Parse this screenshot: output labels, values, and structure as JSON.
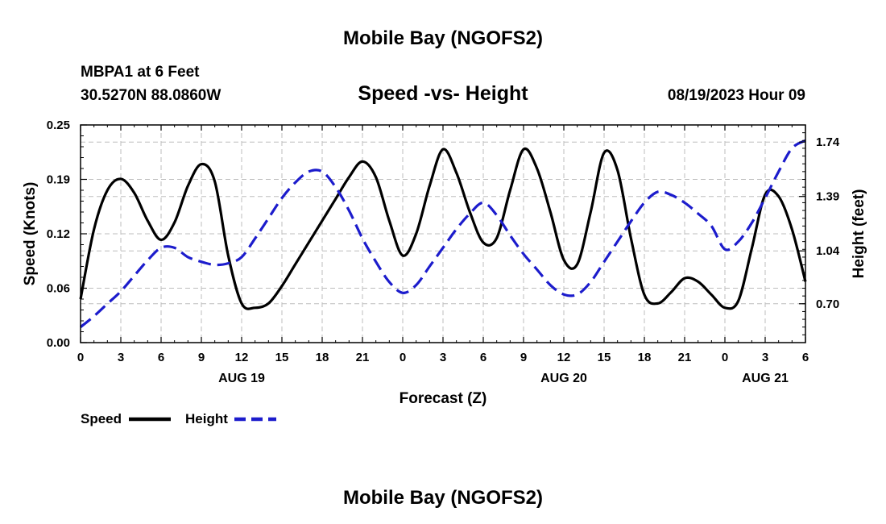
{
  "header": {
    "title": "Mobile Bay (NGOFS2)",
    "station_line1": "MBPA1 at 6 Feet",
    "station_line2": "30.5270N  88.0860W",
    "plot_title": "Speed -vs- Height",
    "datetime": "08/19/2023 Hour 09"
  },
  "footer": {
    "title": "Mobile Bay (NGOFS2)"
  },
  "legend": {
    "placement": "bottom-left",
    "items": [
      {
        "label": "Speed",
        "color": "#000000",
        "style": "solid"
      },
      {
        "label": "Height",
        "color": "#1c1ccc",
        "style": "dashed"
      }
    ]
  },
  "chart_data": {
    "type": "line",
    "xlabel": "Forecast (Z)",
    "ylabel": "Speed (Knots)",
    "y2label": "Height (feet)",
    "x_unit": "hours from 00Z Aug 19",
    "xlim": [
      0,
      54
    ],
    "ylim": [
      0,
      0.25
    ],
    "y2lim": [
      0.45,
      1.85
    ],
    "x_ticks": [
      0,
      3,
      6,
      9,
      12,
      15,
      18,
      21,
      24,
      27,
      30,
      33,
      36,
      39,
      42,
      45,
      48,
      51,
      54
    ],
    "x_tick_labels": [
      "0",
      "3",
      "6",
      "9",
      "12",
      "15",
      "18",
      "21",
      "0",
      "3",
      "6",
      "9",
      "12",
      "15",
      "18",
      "21",
      "0",
      "3",
      "6"
    ],
    "date_labels": [
      {
        "x": 12,
        "label": "AUG 19"
      },
      {
        "x": 36,
        "label": "AUG 20"
      },
      {
        "x": 51,
        "label": "AUG 21"
      }
    ],
    "y_ticks": [
      0,
      0.0625,
      0.125,
      0.1875,
      0.25
    ],
    "y_tick_labels": [
      "0.00",
      "0.06",
      "0.12",
      "0.19",
      "0.25"
    ],
    "y2_ticks": [
      0.7,
      1.04,
      1.39,
      1.74
    ],
    "y2_tick_labels": [
      "0.70",
      "1.04",
      "1.39",
      "1.74"
    ],
    "grid": true,
    "series": [
      {
        "name": "Speed",
        "axis": "left",
        "color": "#000000",
        "dash": false,
        "x": [
          0,
          1,
          2,
          3,
          4,
          5,
          6,
          7,
          8,
          9,
          10,
          11,
          12,
          13,
          14,
          15,
          16,
          17,
          18,
          19,
          20,
          21,
          22,
          23,
          24,
          25,
          26,
          27,
          28,
          29,
          30,
          31,
          32,
          33,
          34,
          35,
          36,
          37,
          38,
          39,
          40,
          41,
          42,
          43,
          44,
          45,
          46,
          47,
          48,
          49,
          50,
          51,
          52,
          53,
          54
        ],
        "values": [
          0.05,
          0.13,
          0.175,
          0.188,
          0.172,
          0.14,
          0.118,
          0.138,
          0.18,
          0.205,
          0.185,
          0.1,
          0.045,
          0.04,
          0.045,
          0.065,
          0.09,
          0.115,
          0.14,
          0.165,
          0.19,
          0.208,
          0.19,
          0.14,
          0.1,
          0.125,
          0.18,
          0.222,
          0.195,
          0.15,
          0.115,
          0.12,
          0.175,
          0.222,
          0.2,
          0.15,
          0.095,
          0.09,
          0.15,
          0.218,
          0.198,
          0.12,
          0.055,
          0.045,
          0.058,
          0.074,
          0.07,
          0.055,
          0.04,
          0.048,
          0.108,
          0.17,
          0.168,
          0.13,
          0.07
        ]
      },
      {
        "name": "Height",
        "axis": "right",
        "color": "#1c1ccc",
        "dash": true,
        "x": [
          0,
          1,
          2,
          3,
          4,
          5,
          6,
          7,
          8,
          9,
          10,
          11,
          12,
          13,
          14,
          15,
          16,
          17,
          18,
          19,
          20,
          21,
          22,
          23,
          24,
          25,
          26,
          27,
          28,
          29,
          30,
          31,
          32,
          33,
          34,
          35,
          36,
          37,
          38,
          39,
          40,
          41,
          42,
          43,
          44,
          45,
          46,
          47,
          48,
          49,
          50,
          51,
          52,
          53,
          54
        ],
        "values": [
          0.55,
          0.62,
          0.7,
          0.78,
          0.88,
          0.98,
          1.06,
          1.06,
          1.0,
          0.97,
          0.95,
          0.96,
          1.0,
          1.12,
          1.25,
          1.38,
          1.48,
          1.55,
          1.55,
          1.45,
          1.3,
          1.12,
          0.97,
          0.84,
          0.77,
          0.82,
          0.94,
          1.06,
          1.18,
          1.28,
          1.35,
          1.27,
          1.14,
          1.02,
          0.92,
          0.82,
          0.76,
          0.76,
          0.84,
          0.97,
          1.1,
          1.23,
          1.35,
          1.42,
          1.4,
          1.35,
          1.28,
          1.2,
          1.05,
          1.1,
          1.22,
          1.38,
          1.55,
          1.7,
          1.75
        ]
      }
    ]
  }
}
